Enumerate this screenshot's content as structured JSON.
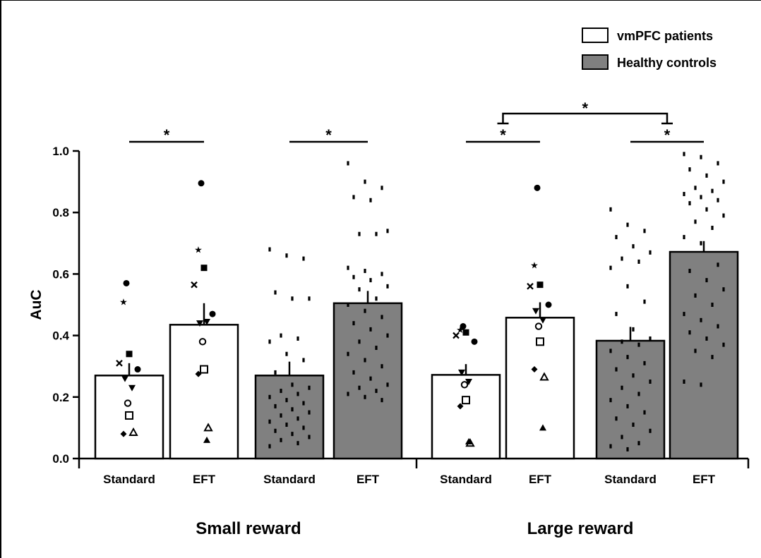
{
  "chart_data": {
    "type": "bar",
    "ylabel": "AuC",
    "ylim": [
      0,
      1.0
    ],
    "yticks": [
      "0.0",
      "0.2",
      "0.4",
      "0.6",
      "0.8",
      "1.0"
    ],
    "groups": [
      "Small reward",
      "Large reward"
    ],
    "categories": [
      "Standard",
      "EFT",
      "Standard",
      "EFT",
      "Standard",
      "EFT",
      "Standard",
      "EFT"
    ],
    "series": [
      {
        "name": "vmPFC patients",
        "color": "#ffffff"
      },
      {
        "name": "Healthy controls",
        "color": "#808080"
      }
    ],
    "bars": [
      {
        "group": "Small reward",
        "category": "Standard",
        "series": "vmPFC patients",
        "value": 0.27,
        "error": 0.04,
        "points": [
          0.57,
          0.51,
          0.34,
          0.31,
          0.29,
          0.26,
          0.23,
          0.18,
          0.14,
          0.08,
          0.085
        ]
      },
      {
        "group": "Small reward",
        "category": "EFT",
        "series": "vmPFC patients",
        "value": 0.435,
        "error": 0.07,
        "points": [
          0.895,
          0.68,
          0.62,
          0.565,
          0.47,
          0.44,
          0.445,
          0.38,
          0.29,
          0.275,
          0.1,
          0.06
        ]
      },
      {
        "group": "Small reward",
        "category": "Standard",
        "series": "Healthy controls",
        "value": 0.27,
        "error": 0.045,
        "points": [
          0.68,
          0.66,
          0.65,
          0.54,
          0.52,
          0.52,
          0.4,
          0.39,
          0.38,
          0.34,
          0.32,
          0.28,
          0.24,
          0.23,
          0.22,
          0.21,
          0.2,
          0.19,
          0.18,
          0.17,
          0.16,
          0.15,
          0.14,
          0.13,
          0.12,
          0.11,
          0.1,
          0.09,
          0.08,
          0.07,
          0.06,
          0.05,
          0.04
        ]
      },
      {
        "group": "Small reward",
        "category": "EFT",
        "series": "Healthy controls",
        "value": 0.505,
        "error": 0.04,
        "points": [
          0.96,
          0.9,
          0.88,
          0.85,
          0.84,
          0.74,
          0.73,
          0.73,
          0.62,
          0.61,
          0.6,
          0.59,
          0.58,
          0.56,
          0.55,
          0.52,
          0.5,
          0.48,
          0.46,
          0.44,
          0.42,
          0.4,
          0.38,
          0.36,
          0.34,
          0.32,
          0.3,
          0.28,
          0.26,
          0.24,
          0.23,
          0.22,
          0.21,
          0.2,
          0.19
        ]
      },
      {
        "group": "Large reward",
        "category": "Standard",
        "series": "vmPFC patients",
        "value": 0.272,
        "error": 0.035,
        "points": [
          0.43,
          0.42,
          0.41,
          0.4,
          0.38,
          0.28,
          0.25,
          0.24,
          0.19,
          0.17,
          0.05,
          0.055
        ]
      },
      {
        "group": "Large reward",
        "category": "EFT",
        "series": "vmPFC patients",
        "value": 0.458,
        "error": 0.05,
        "points": [
          0.88,
          0.63,
          0.565,
          0.56,
          0.5,
          0.48,
          0.45,
          0.43,
          0.38,
          0.29,
          0.265,
          0.1
        ]
      },
      {
        "group": "Large reward",
        "category": "Standard",
        "series": "Healthy controls",
        "value": 0.383,
        "error": 0.045,
        "points": [
          0.81,
          0.76,
          0.74,
          0.72,
          0.69,
          0.67,
          0.65,
          0.64,
          0.62,
          0.56,
          0.51,
          0.47,
          0.42,
          0.39,
          0.38,
          0.37,
          0.35,
          0.33,
          0.31,
          0.29,
          0.27,
          0.25,
          0.23,
          0.21,
          0.19,
          0.17,
          0.15,
          0.13,
          0.11,
          0.09,
          0.07,
          0.05,
          0.04,
          0.03
        ]
      },
      {
        "group": "Large reward",
        "category": "EFT",
        "series": "Healthy controls",
        "value": 0.672,
        "error": 0.035,
        "points": [
          0.99,
          0.98,
          0.96,
          0.94,
          0.92,
          0.9,
          0.88,
          0.87,
          0.86,
          0.85,
          0.84,
          0.83,
          0.81,
          0.79,
          0.77,
          0.75,
          0.72,
          0.7,
          0.63,
          0.61,
          0.58,
          0.55,
          0.53,
          0.5,
          0.47,
          0.45,
          0.43,
          0.41,
          0.39,
          0.37,
          0.35,
          0.33,
          0.25,
          0.24
        ]
      }
    ],
    "annotations": [
      {
        "text": "*",
        "from_bar": 0,
        "to_bar": 1
      },
      {
        "text": "*",
        "from_bar": 2,
        "to_bar": 3
      },
      {
        "text": "*",
        "from_bar": 4,
        "to_bar": 5
      },
      {
        "text": "*",
        "from_bar": 6,
        "to_bar": 7
      },
      {
        "text": "*",
        "from_bar": 4.5,
        "to_bar": 6.5,
        "bracket": true
      }
    ],
    "legend_position": "top-right",
    "grid": false
  }
}
